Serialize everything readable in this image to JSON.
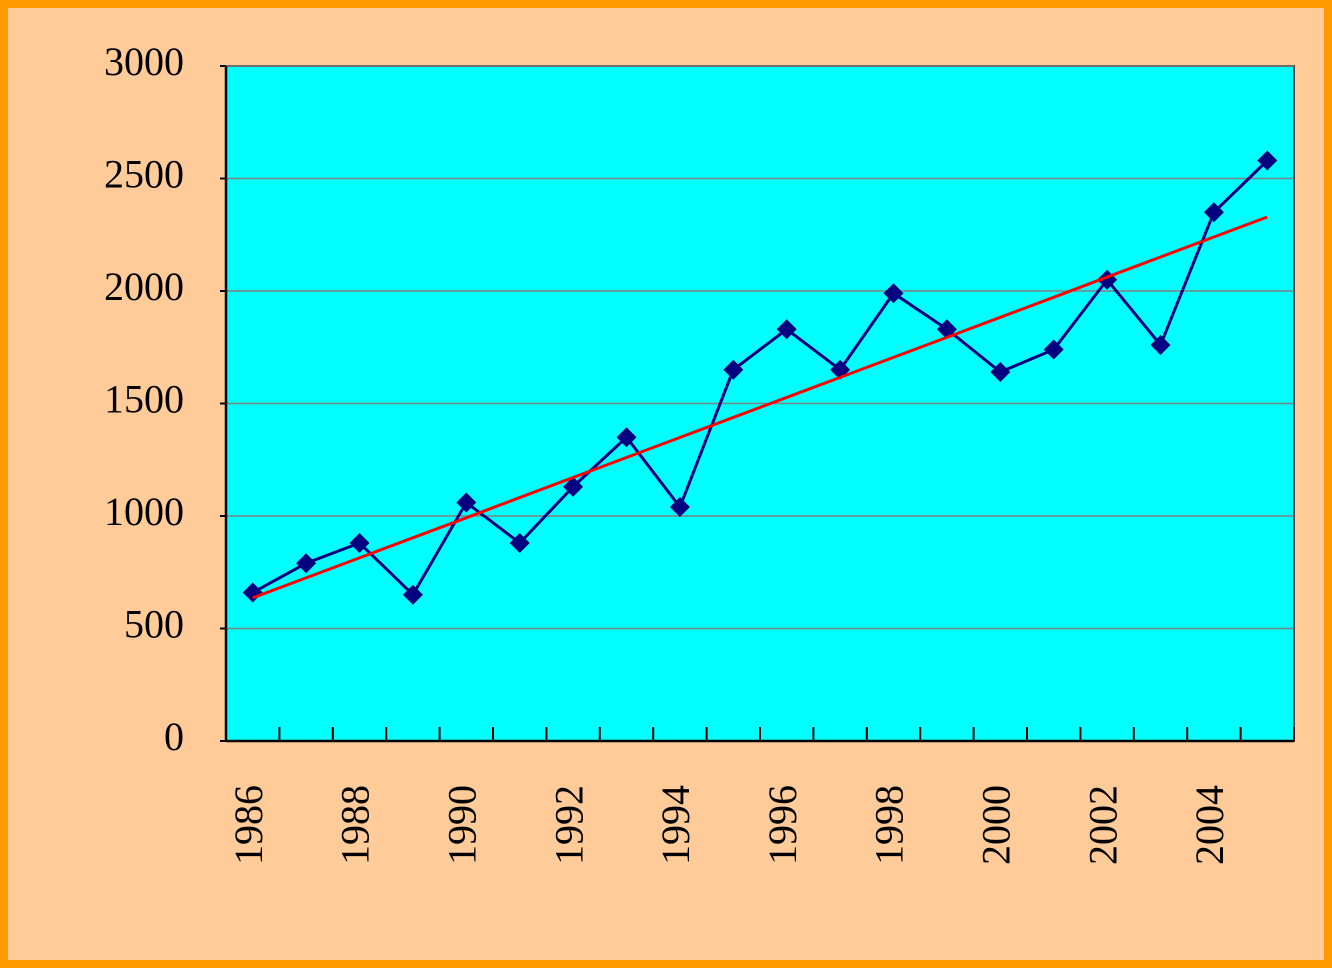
{
  "chart_data": {
    "type": "line",
    "categories": [
      "1986",
      null,
      "1988",
      null,
      "1990",
      null,
      "1992",
      null,
      "1994",
      null,
      "1996",
      null,
      "1998",
      null,
      "2000",
      null,
      "2002",
      null,
      "2004",
      null
    ],
    "series": [
      {
        "color": "#000080",
        "marker": "diamond",
        "values": [
          660,
          790,
          880,
          650,
          1060,
          880,
          1130,
          1350,
          1040,
          1650,
          1830,
          1650,
          1990,
          1830,
          1640,
          1740,
          2050,
          1760,
          2350,
          2580
        ]
      },
      {
        "color": "#ff0000",
        "values": [
          636,
          725,
          814,
          903,
          992,
          1082,
          1171,
          1260,
          1349,
          1438,
          1527,
          1616,
          1705,
          1794,
          1883,
          1972,
          2062,
          2151,
          2240,
          2329
        ]
      }
    ],
    "ylim": [
      0,
      3000
    ],
    "yticks": [
      0,
      500,
      1000,
      1500,
      2000,
      2500,
      3000
    ],
    "grid": true
  }
}
